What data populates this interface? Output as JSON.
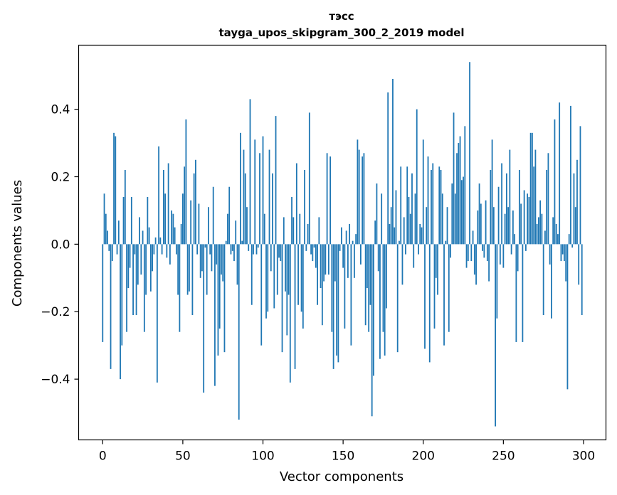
{
  "chart_data": {
    "type": "bar",
    "title": "тэсс",
    "subtitle": "tayga_upos_skipgram_300_2_2019 model",
    "xlabel": "Vector components",
    "ylabel": "Components values",
    "xlim": [
      -15,
      314
    ],
    "ylim": [
      -0.58,
      0.59
    ],
    "x_ticks": [
      0,
      50,
      100,
      150,
      200,
      250,
      300
    ],
    "x_tick_labels": [
      "0",
      "50",
      "100",
      "150",
      "200",
      "250",
      "300"
    ],
    "y_ticks": [
      -0.4,
      -0.2,
      0.0,
      0.2,
      0.4
    ],
    "y_tick_labels": [
      "−0.4",
      "−0.2",
      "0.0",
      "0.2",
      "0.4"
    ],
    "grid": false,
    "bar_color": "#1f77b4",
    "x": [
      0,
      1,
      2,
      3,
      4,
      5,
      6,
      7,
      8,
      9,
      10,
      11,
      12,
      13,
      14,
      15,
      16,
      17,
      18,
      19,
      20,
      21,
      22,
      23,
      24,
      25,
      26,
      27,
      28,
      29,
      30,
      31,
      32,
      33,
      34,
      35,
      36,
      37,
      38,
      39,
      40,
      41,
      42,
      43,
      44,
      45,
      46,
      47,
      48,
      49,
      50,
      51,
      52,
      53,
      54,
      55,
      56,
      57,
      58,
      59,
      60,
      61,
      62,
      63,
      64,
      65,
      66,
      67,
      68,
      69,
      70,
      71,
      72,
      73,
      74,
      75,
      76,
      77,
      78,
      79,
      80,
      81,
      82,
      83,
      84,
      85,
      86,
      87,
      88,
      89,
      90,
      91,
      92,
      93,
      94,
      95,
      96,
      97,
      98,
      99,
      100,
      101,
      102,
      103,
      104,
      105,
      106,
      107,
      108,
      109,
      110,
      111,
      112,
      113,
      114,
      115,
      116,
      117,
      118,
      119,
      120,
      121,
      122,
      123,
      124,
      125,
      126,
      127,
      128,
      129,
      130,
      131,
      132,
      133,
      134,
      135,
      136,
      137,
      138,
      139,
      140,
      141,
      142,
      143,
      144,
      145,
      146,
      147,
      148,
      149,
      150,
      151,
      152,
      153,
      154,
      155,
      156,
      157,
      158,
      159,
      160,
      161,
      162,
      163,
      164,
      165,
      166,
      167,
      168,
      169,
      170,
      171,
      172,
      173,
      174,
      175,
      176,
      177,
      178,
      179,
      180,
      181,
      182,
      183,
      184,
      185,
      186,
      187,
      188,
      189,
      190,
      191,
      192,
      193,
      194,
      195,
      196,
      197,
      198,
      199,
      200,
      201,
      202,
      203,
      204,
      205,
      206,
      207,
      208,
      209,
      210,
      211,
      212,
      213,
      214,
      215,
      216,
      217,
      218,
      219,
      220,
      221,
      222,
      223,
      224,
      225,
      226,
      227,
      228,
      229,
      230,
      231,
      232,
      233,
      234,
      235,
      236,
      237,
      238,
      239,
      240,
      241,
      242,
      243,
      244,
      245,
      246,
      247,
      248,
      249,
      250,
      251,
      252,
      253,
      254,
      255,
      256,
      257,
      258,
      259,
      260,
      261,
      262,
      263,
      264,
      265,
      266,
      267,
      268,
      269,
      270,
      271,
      272,
      273,
      274,
      275,
      276,
      277,
      278,
      279,
      280,
      281,
      282,
      283,
      284,
      285,
      286,
      287,
      288,
      289,
      290,
      291,
      292,
      293,
      294,
      295,
      296,
      297,
      298,
      299
    ],
    "values": [
      -0.29,
      0.15,
      0.09,
      0.04,
      -0.02,
      -0.37,
      -0.05,
      0.33,
      0.32,
      -0.03,
      0.07,
      -0.4,
      -0.3,
      0.14,
      0.22,
      -0.26,
      -0.13,
      -0.07,
      0.14,
      -0.21,
      -0.03,
      -0.21,
      -0.12,
      0.08,
      -0.09,
      0.04,
      -0.26,
      -0.15,
      0.14,
      0.05,
      -0.14,
      -0.08,
      -0.03,
      0.02,
      -0.41,
      0.29,
      0.02,
      -0.03,
      0.22,
      0.15,
      -0.04,
      0.24,
      -0.06,
      0.1,
      0.09,
      0.05,
      -0.03,
      -0.15,
      -0.26,
      0.06,
      0.15,
      0.23,
      0.37,
      -0.15,
      -0.14,
      0.13,
      -0.21,
      0.21,
      0.25,
      -0.03,
      0.12,
      -0.1,
      -0.08,
      -0.44,
      -0.01,
      -0.15,
      0.11,
      -0.03,
      -0.08,
      0.17,
      -0.42,
      -0.06,
      -0.33,
      -0.25,
      -0.09,
      -0.11,
      -0.32,
      0.01,
      0.09,
      0.17,
      -0.03,
      -0.02,
      -0.05,
      0.07,
      -0.12,
      -0.52,
      0.33,
      0.01,
      0.28,
      0.21,
      0.11,
      -0.02,
      0.43,
      -0.18,
      -0.03,
      0.31,
      -0.03,
      -0.01,
      0.27,
      -0.3,
      0.32,
      0.09,
      -0.22,
      -0.2,
      0.28,
      -0.08,
      0.21,
      -0.19,
      0.38,
      -0.15,
      -0.04,
      -0.05,
      -0.32,
      0.08,
      -0.14,
      -0.27,
      -0.15,
      -0.41,
      0.14,
      0.08,
      -0.37,
      0.24,
      -0.18,
      0.09,
      -0.2,
      -0.25,
      0.22,
      -0.02,
      0.06,
      0.39,
      -0.03,
      -0.05,
      -0.01,
      -0.07,
      -0.18,
      0.08,
      -0.13,
      -0.24,
      -0.11,
      -0.09,
      0.27,
      -0.09,
      0.26,
      -0.26,
      -0.37,
      -0.11,
      -0.33,
      -0.35,
      -0.02,
      0.05,
      -0.07,
      -0.25,
      0.04,
      -0.1,
      0.06,
      -0.3,
      0.01,
      -0.1,
      0.03,
      0.31,
      0.28,
      -0.06,
      0.26,
      0.27,
      -0.24,
      -0.13,
      -0.26,
      -0.18,
      -0.51,
      -0.39,
      0.07,
      0.18,
      -0.08,
      -0.34,
      0.15,
      -0.26,
      -0.33,
      -0.19,
      0.45,
      0.06,
      0.11,
      0.49,
      0.05,
      0.16,
      -0.32,
      0.01,
      0.23,
      -0.12,
      0.08,
      -0.03,
      0.23,
      0.14,
      0.09,
      0.21,
      -0.07,
      0.15,
      0.4,
      -0.03,
      0.06,
      0.05,
      0.31,
      -0.31,
      0.11,
      0.26,
      -0.35,
      0.22,
      0.24,
      -0.25,
      -0.1,
      -0.15,
      0.23,
      0.22,
      0.15,
      -0.3,
      0.01,
      0.11,
      -0.26,
      -0.04,
      0.18,
      0.39,
      0.15,
      0.27,
      0.3,
      0.32,
      0.19,
      0.2,
      0.35,
      -0.07,
      -0.05,
      0.54,
      -0.05,
      0.04,
      -0.09,
      -0.12,
      0.1,
      0.18,
      0.12,
      -0.02,
      -0.04,
      0.13,
      -0.05,
      -0.11,
      0.22,
      0.31,
      0.11,
      -0.54,
      -0.22,
      0.17,
      -0.06,
      0.24,
      -0.07,
      0.09,
      0.21,
      0.11,
      0.28,
      -0.03,
      0.1,
      0.03,
      -0.29,
      -0.08,
      0.22,
      0.12,
      -0.29,
      0.16,
      -0.02,
      0.15,
      0.14,
      0.33,
      0.33,
      0.23,
      0.28,
      0.06,
      0.08,
      0.13,
      0.09,
      -0.21,
      0.04,
      0.22,
      0.27,
      -0.06,
      -0.22,
      0.08,
      0.37,
      0.06,
      0.03,
      0.42,
      -0.05,
      -0.03,
      -0.05,
      -0.11,
      -0.43,
      0.03,
      0.41,
      -0.01,
      0.21,
      0.11,
      0.25,
      -0.12,
      0.35,
      -0.21
    ]
  }
}
